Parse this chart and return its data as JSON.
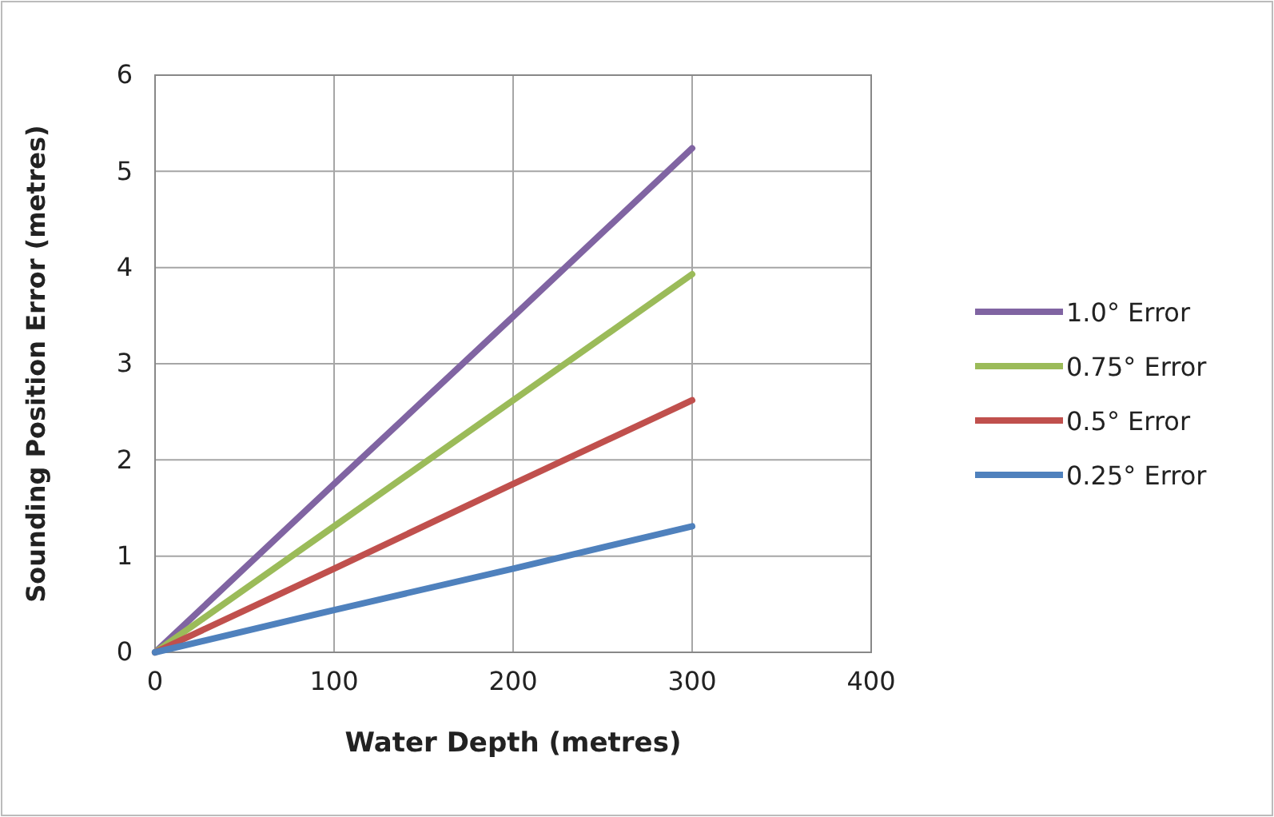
{
  "chart_data": {
    "type": "line",
    "xlabel": "Water Depth (metres)",
    "ylabel": "Sounding Position Error (metres)",
    "xlim": [
      0,
      400
    ],
    "xticks": [
      0,
      100,
      200,
      300,
      400
    ],
    "ylim": [
      0,
      6
    ],
    "yticks": [
      0,
      1,
      2,
      3,
      4,
      5,
      6
    ],
    "grid": true,
    "legend": "right",
    "marker": "none",
    "line_style": "solid",
    "series": [
      {
        "name": "1.0° Error",
        "color": "#8064a2",
        "x": [
          0,
          100,
          200,
          300
        ],
        "values": [
          0,
          1.75,
          3.49,
          5.24
        ]
      },
      {
        "name": "0.75° Error",
        "color": "#9bbb59",
        "x": [
          0,
          100,
          200,
          300
        ],
        "values": [
          0,
          1.31,
          2.62,
          3.93
        ]
      },
      {
        "name": "0.5° Error",
        "color": "#c0504d",
        "x": [
          0,
          100,
          200,
          300
        ],
        "values": [
          0,
          0.87,
          1.75,
          2.62
        ]
      },
      {
        "name": "0.25° Error",
        "color": "#4f81bd",
        "x": [
          0,
          100,
          200,
          300
        ],
        "values": [
          0,
          0.44,
          0.87,
          1.31
        ]
      }
    ]
  }
}
